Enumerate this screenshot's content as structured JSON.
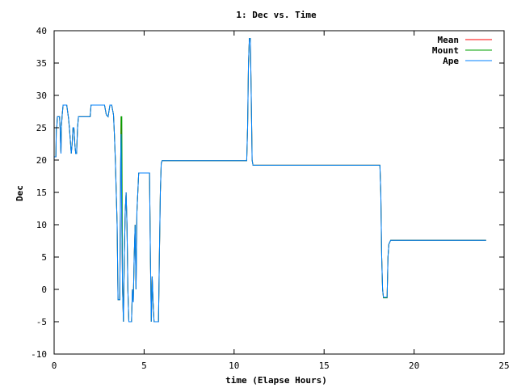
{
  "chart_data": {
    "type": "line",
    "title": "1: Dec vs. Time",
    "xlabel": "time (Elapse Hours)",
    "ylabel": "Dec",
    "xlim": [
      0,
      25
    ],
    "ylim": [
      -10,
      40
    ],
    "x_ticks": [
      "0",
      "5",
      "10",
      "15",
      "20",
      "25"
    ],
    "y_ticks": [
      "-10",
      "-5",
      "0",
      "5",
      "10",
      "15",
      "20",
      "25",
      "30",
      "35",
      "40"
    ],
    "grid": false,
    "legend_position": "top-right",
    "series": [
      {
        "name": "Mean",
        "color": "#ff0000",
        "points": [
          [
            0.0,
            20.5
          ],
          [
            0.1,
            20.5
          ],
          [
            0.12,
            25
          ],
          [
            0.15,
            25
          ],
          [
            0.18,
            26.7
          ],
          [
            0.3,
            26.7
          ],
          [
            0.33,
            25
          ],
          [
            0.36,
            22.5
          ],
          [
            0.38,
            21
          ],
          [
            0.4,
            25
          ],
          [
            0.45,
            27
          ],
          [
            0.5,
            28.5
          ],
          [
            0.7,
            28.5
          ],
          [
            0.75,
            27.5
          ],
          [
            0.8,
            26.5
          ],
          [
            0.85,
            25
          ],
          [
            0.9,
            23
          ],
          [
            0.95,
            21
          ],
          [
            1.0,
            22.5
          ],
          [
            1.05,
            25
          ],
          [
            1.1,
            25
          ],
          [
            1.15,
            22.5
          ],
          [
            1.2,
            21
          ],
          [
            1.25,
            21
          ],
          [
            1.3,
            25
          ],
          [
            1.35,
            26.7
          ],
          [
            1.4,
            26.7
          ],
          [
            2.0,
            26.7
          ],
          [
            2.05,
            28.5
          ],
          [
            2.8,
            28.5
          ],
          [
            2.9,
            27
          ],
          [
            3.0,
            26.7
          ],
          [
            3.1,
            28.5
          ],
          [
            3.2,
            28.5
          ],
          [
            3.3,
            27
          ],
          [
            3.35,
            24
          ],
          [
            3.4,
            20
          ],
          [
            3.5,
            10
          ],
          [
            3.55,
            -1.6
          ],
          [
            3.65,
            -1.6
          ],
          [
            3.7,
            20
          ],
          [
            3.72,
            26.7
          ],
          [
            3.76,
            10
          ],
          [
            3.8,
            0
          ],
          [
            3.85,
            -5
          ],
          [
            3.9,
            5
          ],
          [
            3.95,
            12
          ],
          [
            4.0,
            15
          ],
          [
            4.05,
            10
          ],
          [
            4.1,
            0
          ],
          [
            4.15,
            -5
          ],
          [
            4.3,
            -5
          ],
          [
            4.35,
            0
          ],
          [
            4.4,
            -2
          ],
          [
            4.45,
            5
          ],
          [
            4.5,
            10
          ],
          [
            4.55,
            0
          ],
          [
            4.6,
            12
          ],
          [
            4.65,
            15
          ],
          [
            4.7,
            18
          ],
          [
            5.3,
            18
          ],
          [
            5.35,
            5
          ],
          [
            5.4,
            -5
          ],
          [
            5.45,
            2
          ],
          [
            5.5,
            -2
          ],
          [
            5.55,
            -5
          ],
          [
            5.6,
            -5
          ],
          [
            5.8,
            -5
          ],
          [
            5.85,
            5
          ],
          [
            5.9,
            15
          ],
          [
            5.95,
            19.5
          ],
          [
            6.0,
            19.9
          ],
          [
            10.7,
            19.9
          ],
          [
            10.75,
            25
          ],
          [
            10.8,
            35
          ],
          [
            10.85,
            38.8
          ],
          [
            10.9,
            38.8
          ],
          [
            10.95,
            30
          ],
          [
            11.0,
            20
          ],
          [
            11.05,
            19.2
          ],
          [
            12.5,
            19.2
          ],
          [
            18.1,
            19.2
          ],
          [
            18.15,
            15
          ],
          [
            18.2,
            5
          ],
          [
            18.25,
            0
          ],
          [
            18.3,
            -1.3
          ],
          [
            18.5,
            -1.3
          ],
          [
            18.55,
            5
          ],
          [
            18.6,
            7
          ],
          [
            18.7,
            7.6
          ],
          [
            24.0,
            7.6
          ]
        ]
      },
      {
        "name": "Mount",
        "color": "#00a000",
        "points": [
          [
            0.0,
            20.5
          ],
          [
            0.1,
            20.5
          ],
          [
            0.12,
            25
          ],
          [
            0.15,
            25
          ],
          [
            0.18,
            26.7
          ],
          [
            0.3,
            26.7
          ],
          [
            0.33,
            25
          ],
          [
            0.36,
            22.5
          ],
          [
            0.38,
            21
          ],
          [
            0.4,
            25
          ],
          [
            0.45,
            27
          ],
          [
            0.5,
            28.5
          ],
          [
            0.7,
            28.5
          ],
          [
            0.75,
            27.5
          ],
          [
            0.8,
            26.5
          ],
          [
            0.85,
            25
          ],
          [
            0.9,
            23
          ],
          [
            0.95,
            21
          ],
          [
            1.0,
            22.5
          ],
          [
            1.05,
            25
          ],
          [
            1.1,
            25
          ],
          [
            1.15,
            22.5
          ],
          [
            1.2,
            21
          ],
          [
            1.25,
            21
          ],
          [
            1.3,
            25
          ],
          [
            1.35,
            26.7
          ],
          [
            1.4,
            26.7
          ],
          [
            2.0,
            26.7
          ],
          [
            2.05,
            28.5
          ],
          [
            2.8,
            28.5
          ],
          [
            2.9,
            27
          ],
          [
            3.0,
            26.7
          ],
          [
            3.1,
            28.5
          ],
          [
            3.2,
            28.5
          ],
          [
            3.3,
            27
          ],
          [
            3.35,
            24
          ],
          [
            3.4,
            20
          ],
          [
            3.5,
            10
          ],
          [
            3.55,
            -1.6
          ],
          [
            3.65,
            -1.6
          ],
          [
            3.7,
            20
          ],
          [
            3.72,
            26.7
          ],
          [
            3.76,
            26.7
          ],
          [
            3.8,
            0
          ],
          [
            3.85,
            -5
          ],
          [
            3.9,
            5
          ],
          [
            3.95,
            12
          ],
          [
            4.0,
            15
          ],
          [
            4.05,
            10
          ],
          [
            4.1,
            0
          ],
          [
            4.15,
            -5
          ],
          [
            4.3,
            -5
          ],
          [
            4.35,
            0
          ],
          [
            4.4,
            -2
          ],
          [
            4.45,
            5
          ],
          [
            4.5,
            10
          ],
          [
            4.55,
            0
          ],
          [
            4.6,
            12
          ],
          [
            4.65,
            15
          ],
          [
            4.7,
            18
          ],
          [
            5.3,
            18
          ],
          [
            5.35,
            5
          ],
          [
            5.4,
            -5
          ],
          [
            5.45,
            2
          ],
          [
            5.5,
            -2
          ],
          [
            5.55,
            -5
          ],
          [
            5.6,
            -5
          ],
          [
            5.8,
            -5
          ],
          [
            5.85,
            5
          ],
          [
            5.9,
            15
          ],
          [
            5.95,
            19.5
          ],
          [
            6.0,
            19.9
          ],
          [
            10.7,
            19.9
          ],
          [
            10.75,
            25
          ],
          [
            10.8,
            35
          ],
          [
            10.85,
            38.8
          ],
          [
            10.9,
            38.8
          ],
          [
            10.95,
            30
          ],
          [
            11.0,
            20
          ],
          [
            11.05,
            19.2
          ],
          [
            12.5,
            19.2
          ],
          [
            18.1,
            19.2
          ],
          [
            18.15,
            15
          ],
          [
            18.2,
            5
          ],
          [
            18.25,
            0
          ],
          [
            18.3,
            -1.3
          ],
          [
            18.5,
            -1.3
          ],
          [
            18.55,
            5
          ],
          [
            18.6,
            7
          ],
          [
            18.7,
            7.6
          ],
          [
            24.0,
            7.6
          ]
        ]
      },
      {
        "name": "Ape",
        "color": "#0080ff",
        "points": [
          [
            0.0,
            20.5
          ],
          [
            0.1,
            20.5
          ],
          [
            0.12,
            25
          ],
          [
            0.15,
            25
          ],
          [
            0.18,
            26.7
          ],
          [
            0.3,
            26.7
          ],
          [
            0.33,
            25
          ],
          [
            0.36,
            22.5
          ],
          [
            0.38,
            21
          ],
          [
            0.4,
            25
          ],
          [
            0.45,
            27
          ],
          [
            0.5,
            28.5
          ],
          [
            0.7,
            28.5
          ],
          [
            0.75,
            27.5
          ],
          [
            0.8,
            26.5
          ],
          [
            0.85,
            25
          ],
          [
            0.9,
            23
          ],
          [
            0.95,
            21
          ],
          [
            1.0,
            22.5
          ],
          [
            1.05,
            25
          ],
          [
            1.1,
            25
          ],
          [
            1.15,
            22.5
          ],
          [
            1.2,
            21
          ],
          [
            1.25,
            21
          ],
          [
            1.3,
            25
          ],
          [
            1.35,
            26.7
          ],
          [
            1.4,
            26.7
          ],
          [
            2.0,
            26.7
          ],
          [
            2.05,
            28.5
          ],
          [
            2.8,
            28.5
          ],
          [
            2.9,
            27
          ],
          [
            3.0,
            26.7
          ],
          [
            3.1,
            28.5
          ],
          [
            3.2,
            28.5
          ],
          [
            3.3,
            27
          ],
          [
            3.35,
            24
          ],
          [
            3.4,
            20
          ],
          [
            3.5,
            10
          ],
          [
            3.55,
            -1.6
          ],
          [
            3.65,
            -1.6
          ],
          [
            3.7,
            20
          ],
          [
            3.72,
            24
          ],
          [
            3.76,
            10
          ],
          [
            3.8,
            0
          ],
          [
            3.85,
            -5
          ],
          [
            3.9,
            5
          ],
          [
            3.95,
            12
          ],
          [
            4.0,
            15
          ],
          [
            4.05,
            10
          ],
          [
            4.1,
            0
          ],
          [
            4.15,
            -5
          ],
          [
            4.3,
            -5
          ],
          [
            4.35,
            0
          ],
          [
            4.4,
            -2
          ],
          [
            4.45,
            5
          ],
          [
            4.5,
            10
          ],
          [
            4.55,
            0
          ],
          [
            4.6,
            12
          ],
          [
            4.65,
            15
          ],
          [
            4.7,
            18
          ],
          [
            5.3,
            18
          ],
          [
            5.35,
            5
          ],
          [
            5.4,
            -5
          ],
          [
            5.45,
            2
          ],
          [
            5.5,
            -2
          ],
          [
            5.55,
            -5
          ],
          [
            5.6,
            -5
          ],
          [
            5.8,
            -5
          ],
          [
            5.85,
            5
          ],
          [
            5.9,
            15
          ],
          [
            5.95,
            19.5
          ],
          [
            6.0,
            19.9
          ],
          [
            10.7,
            19.9
          ],
          [
            10.75,
            25
          ],
          [
            10.8,
            35
          ],
          [
            10.85,
            38.8
          ],
          [
            10.9,
            38.8
          ],
          [
            10.95,
            30
          ],
          [
            11.0,
            20
          ],
          [
            11.05,
            19.2
          ],
          [
            12.5,
            19.2
          ],
          [
            18.1,
            19.2
          ],
          [
            18.15,
            15
          ],
          [
            18.2,
            5
          ],
          [
            18.25,
            0
          ],
          [
            18.3,
            -1.2
          ],
          [
            18.5,
            -1.2
          ],
          [
            18.55,
            5
          ],
          [
            18.6,
            7
          ],
          [
            18.7,
            7.6
          ],
          [
            24.0,
            7.6
          ]
        ]
      }
    ]
  }
}
